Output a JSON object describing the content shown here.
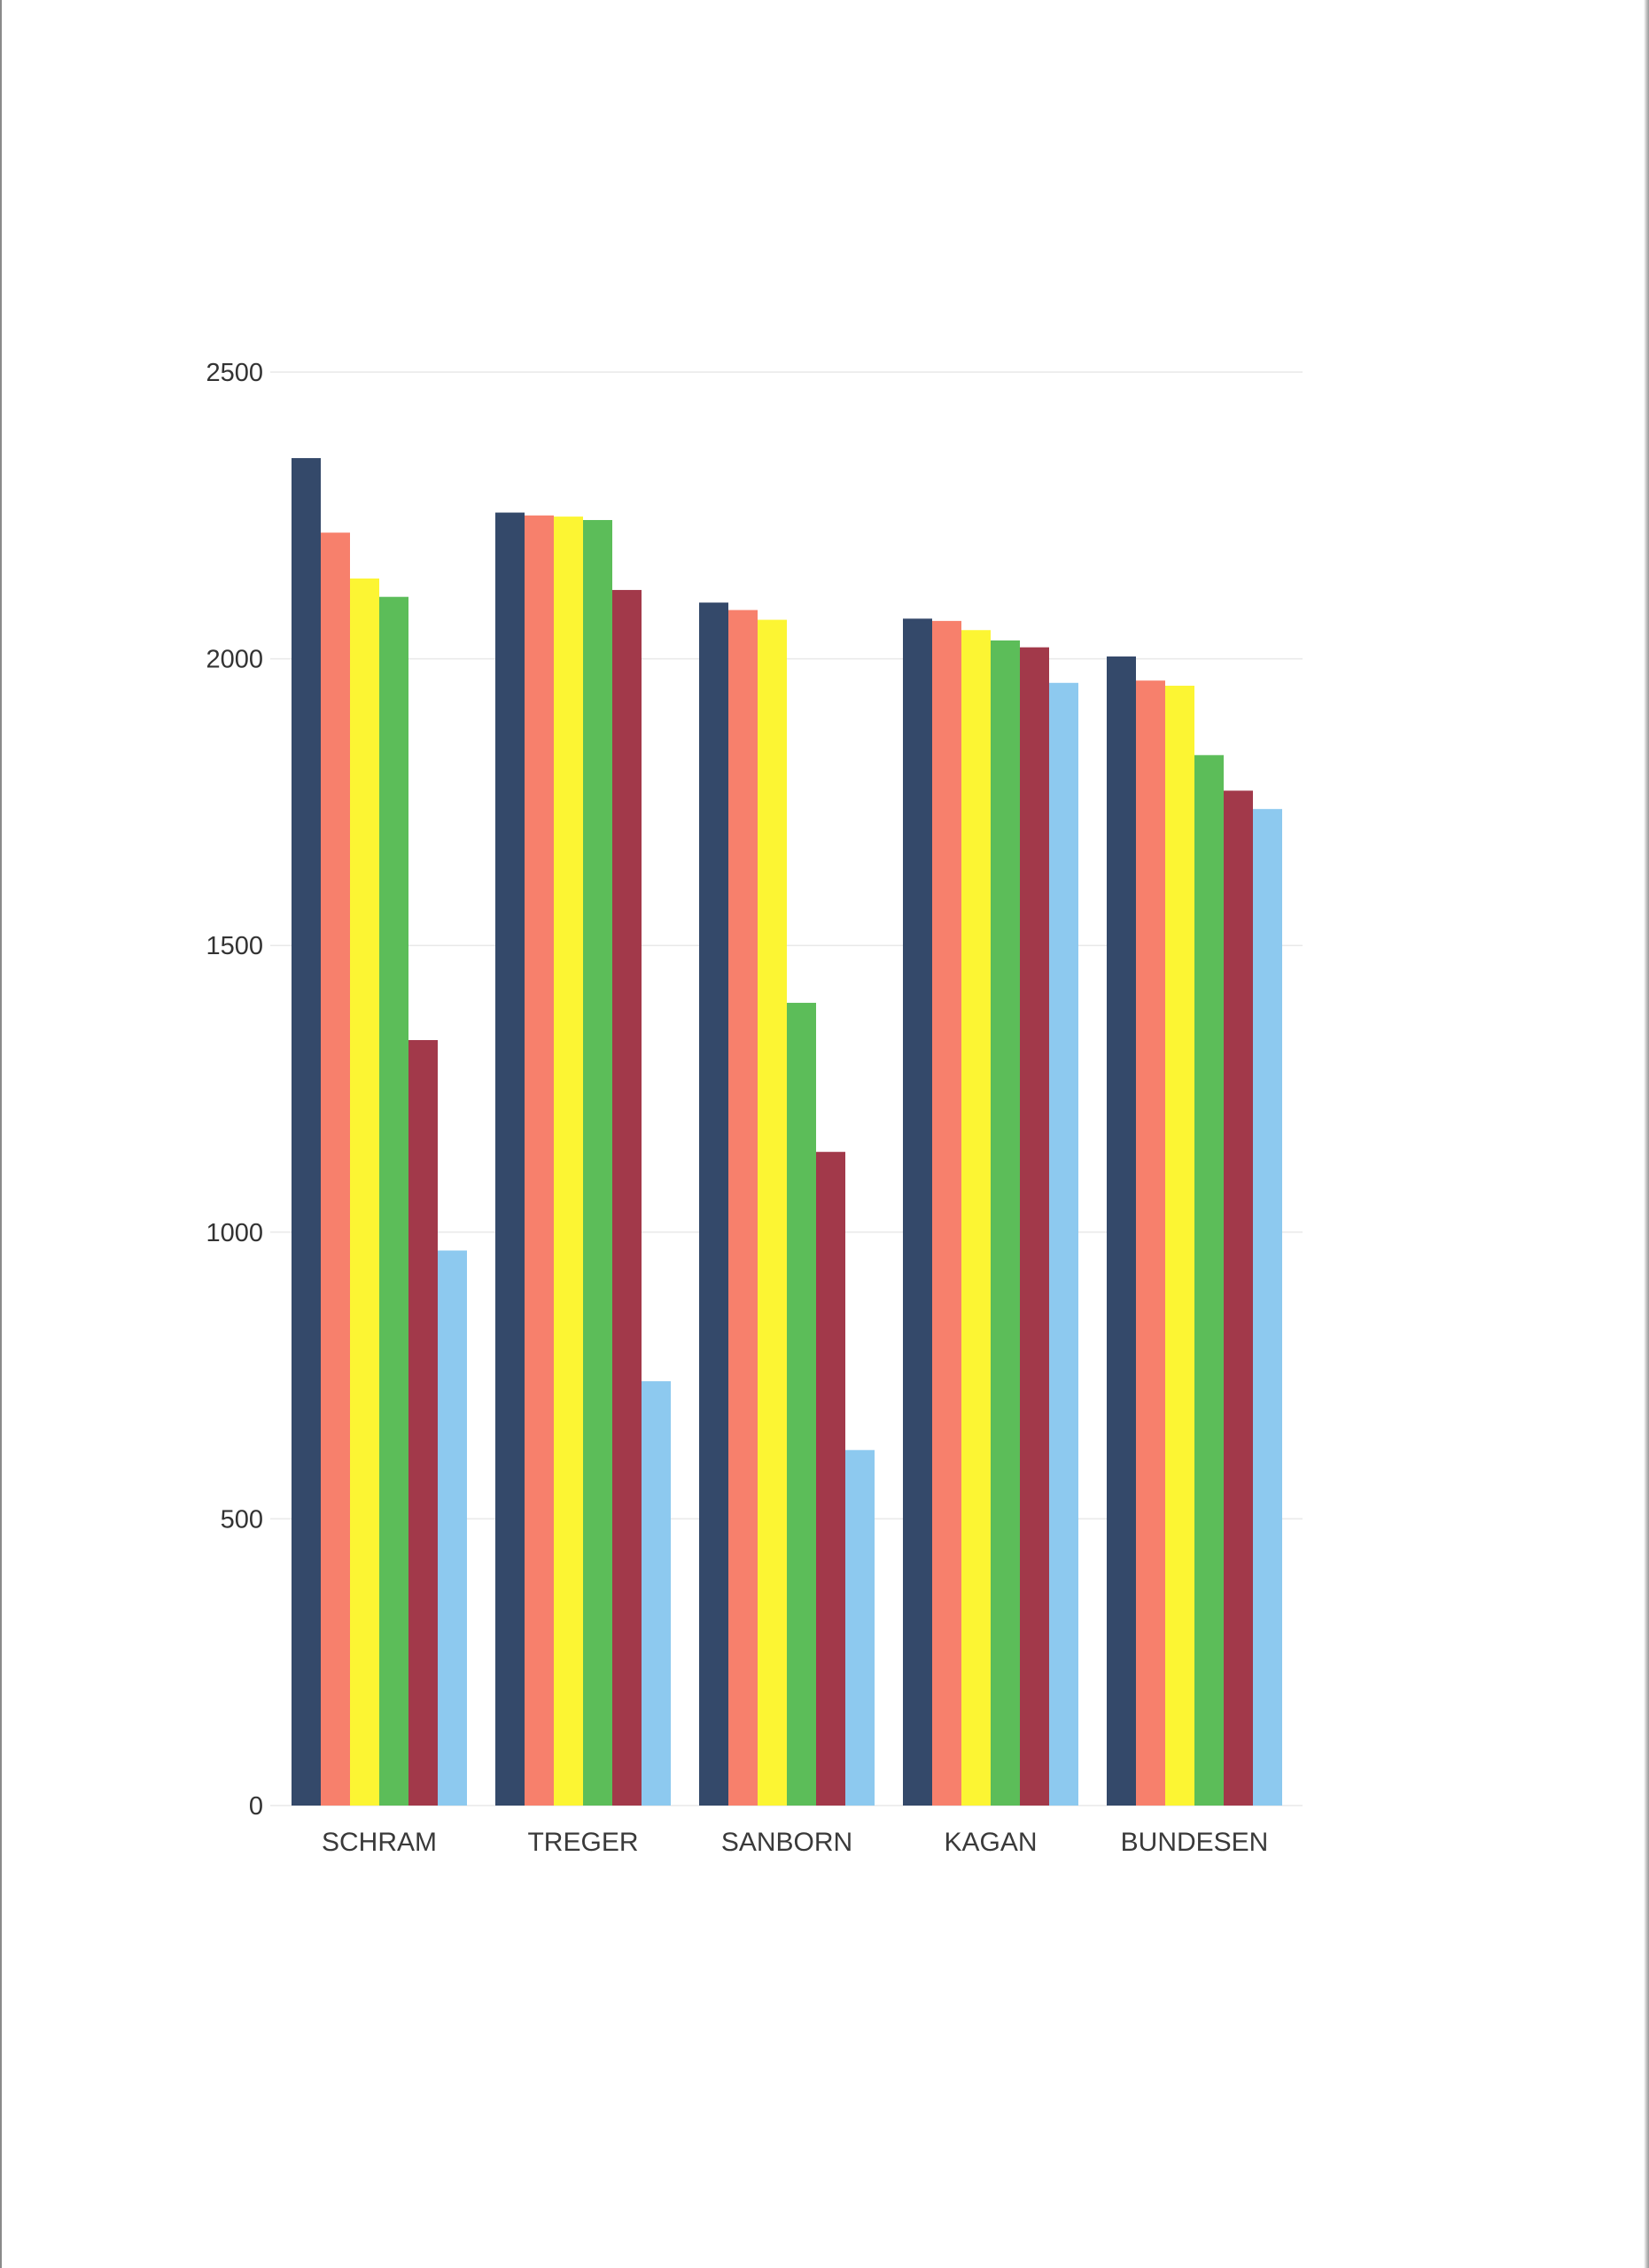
{
  "chart_data": {
    "type": "bar",
    "categories": [
      "SCHRAM",
      "TREGER",
      "SANBORN",
      "KAGAN",
      "BUNDESEN"
    ],
    "series": [
      {
        "color": "#34496a",
        "values": [
          2350,
          2255,
          2098,
          2070,
          2004
        ]
      },
      {
        "color": "#f7806c",
        "values": [
          2220,
          2250,
          2085,
          2066,
          1962
        ]
      },
      {
        "color": "#fcf533",
        "values": [
          2140,
          2248,
          2068,
          2050,
          1953
        ]
      },
      {
        "color": "#5cbd59",
        "values": [
          2108,
          2242,
          1400,
          2032,
          1832
        ]
      },
      {
        "color": "#a2394a",
        "values": [
          1335,
          2120,
          1140,
          2020,
          1770
        ]
      },
      {
        "color": "#8dc9ef",
        "values": [
          968,
          740,
          620,
          1958,
          1738
        ]
      }
    ],
    "yticks": [
      "0",
      "500",
      "1000",
      "1500",
      "2000",
      "2500"
    ],
    "ylim": [
      0,
      2500
    ],
    "grid": true,
    "legend": "none"
  }
}
